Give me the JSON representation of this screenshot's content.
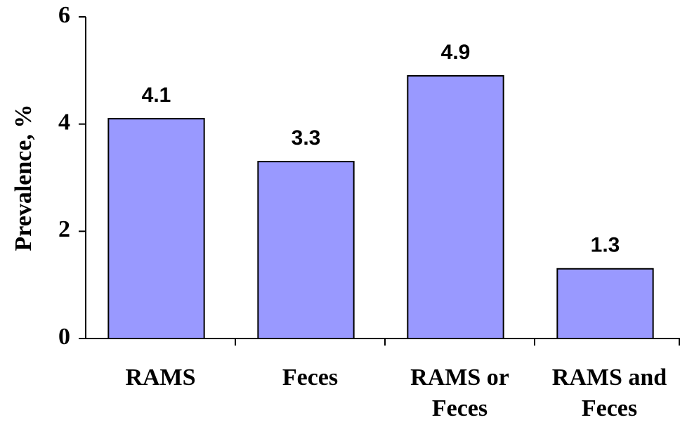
{
  "chart_data": {
    "type": "bar",
    "y_label": "Prevalence, %",
    "categories": [
      "RAMS",
      "Feces",
      "RAMS or Feces",
      "RAMS and Feces"
    ],
    "values": [
      4.1,
      3.3,
      4.9,
      1.3
    ],
    "color": "#9999ff",
    "ylim": [
      0,
      6
    ],
    "yticks": [
      0,
      2,
      4,
      6
    ],
    "grid": false
  }
}
